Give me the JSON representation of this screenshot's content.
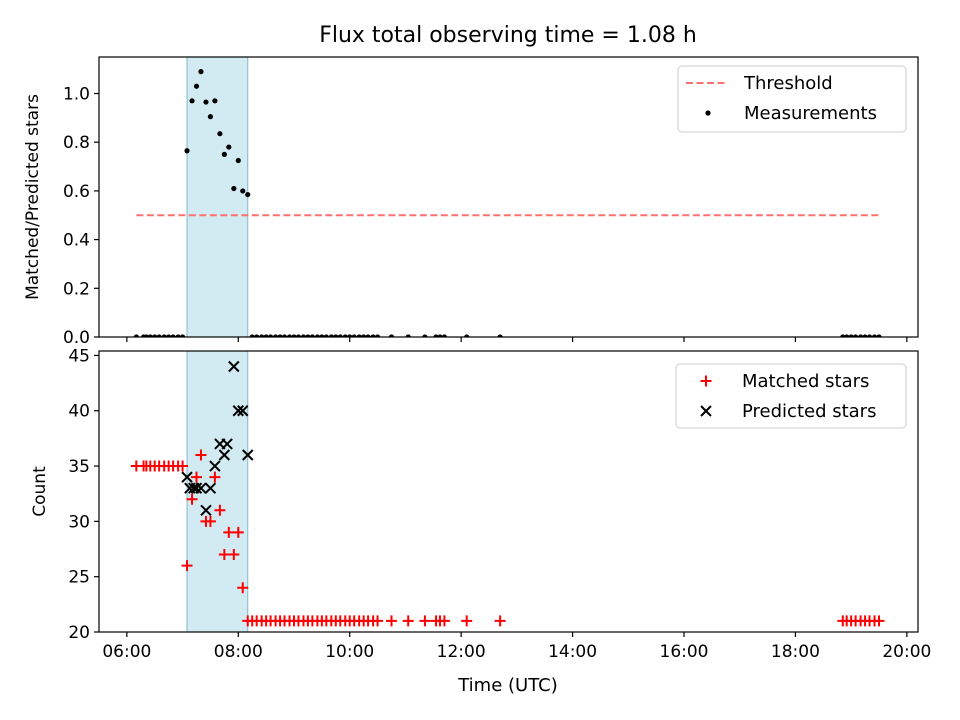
{
  "chart_data": {
    "title": "Flux total observing time = 1.08 h",
    "xlabel": "Time (UTC)",
    "x_unit": "hours UTC",
    "x_ticks": [
      {
        "value": 6,
        "label": "06:00"
      },
      {
        "value": 8,
        "label": "08:00"
      },
      {
        "value": 10,
        "label": "10:00"
      },
      {
        "value": 12,
        "label": "12:00"
      },
      {
        "value": 14,
        "label": "14:00"
      },
      {
        "value": 16,
        "label": "16:00"
      },
      {
        "value": 18,
        "label": "18:00"
      },
      {
        "value": 20,
        "label": "20:00"
      }
    ],
    "xlim": [
      5.5,
      20.2
    ],
    "shaded_interval": [
      7.08,
      8.17
    ],
    "shade_color": "#add8e6",
    "panels": [
      {
        "type": "scatter",
        "ylabel": "Matched/Predicted stars",
        "ylim": [
          0,
          1.15
        ],
        "yticks": [
          0.0,
          0.2,
          0.4,
          0.6,
          0.8,
          1.0
        ],
        "ytick_labels": [
          "0.0",
          "0.2",
          "0.4",
          "0.6",
          "0.8",
          "1.0"
        ],
        "legend_position": "top-right",
        "threshold": {
          "name": "Threshold",
          "value": 0.5,
          "x_range": [
            6.17,
            19.5
          ],
          "color": "#ff7070"
        },
        "series": [
          {
            "name": "Measurements",
            "marker": "dot",
            "color": "#000000",
            "x": [
              6.17,
              6.3,
              6.35,
              6.42,
              6.5,
              6.58,
              6.67,
              6.75,
              6.83,
              6.92,
              7.0,
              7.08,
              7.17,
              7.25,
              7.33,
              7.42,
              7.5,
              7.58,
              7.67,
              7.75,
              7.83,
              7.92,
              8.0,
              8.08,
              8.17,
              8.25,
              8.33,
              8.42,
              8.5,
              8.58,
              8.67,
              8.75,
              8.83,
              8.92,
              9.0,
              9.08,
              9.17,
              9.25,
              9.33,
              9.42,
              9.5,
              9.58,
              9.67,
              9.75,
              9.83,
              9.92,
              10.0,
              10.08,
              10.17,
              10.25,
              10.33,
              10.42,
              10.5,
              10.75,
              11.05,
              11.35,
              11.55,
              11.62,
              11.7,
              12.1,
              12.7,
              18.85,
              18.92,
              19.0,
              19.08,
              19.17,
              19.25,
              19.33,
              19.42,
              19.5
            ],
            "y": [
              0,
              0,
              0,
              0,
              0,
              0,
              0,
              0,
              0,
              0,
              0,
              0.765,
              0.97,
              1.03,
              1.09,
              0.965,
              0.905,
              0.97,
              0.835,
              0.75,
              0.78,
              0.61,
              0.725,
              0.6,
              0.585,
              0,
              0,
              0,
              0,
              0,
              0,
              0,
              0,
              0,
              0,
              0,
              0,
              0,
              0,
              0,
              0,
              0,
              0,
              0,
              0,
              0,
              0,
              0,
              0,
              0,
              0,
              0,
              0,
              0,
              0,
              0,
              0,
              0,
              0,
              0,
              0,
              0,
              0,
              0,
              0,
              0,
              0,
              0,
              0,
              0
            ]
          }
        ]
      },
      {
        "type": "scatter",
        "ylabel": "Count",
        "ylim": [
          20,
          45.4
        ],
        "yticks": [
          20,
          25,
          30,
          35,
          40,
          45
        ],
        "ytick_labels": [
          "20",
          "25",
          "30",
          "35",
          "40",
          "45"
        ],
        "legend_position": "top-right",
        "series": [
          {
            "name": "Matched stars",
            "marker": "plus",
            "color": "#ff0000",
            "x": [
              6.17,
              6.3,
              6.35,
              6.42,
              6.5,
              6.58,
              6.67,
              6.75,
              6.83,
              6.92,
              7.0,
              7.08,
              7.17,
              7.25,
              7.33,
              7.42,
              7.5,
              7.58,
              7.67,
              7.75,
              7.83,
              7.92,
              8.0,
              8.08,
              8.17,
              8.25,
              8.33,
              8.42,
              8.5,
              8.58,
              8.67,
              8.75,
              8.83,
              8.92,
              9.0,
              9.08,
              9.17,
              9.25,
              9.33,
              9.42,
              9.5,
              9.58,
              9.67,
              9.75,
              9.83,
              9.92,
              10.0,
              10.08,
              10.17,
              10.25,
              10.33,
              10.42,
              10.5,
              10.75,
              11.05,
              11.35,
              11.55,
              11.62,
              11.7,
              12.1,
              12.7,
              18.85,
              18.92,
              19.0,
              19.08,
              19.17,
              19.25,
              19.33,
              19.42,
              19.5
            ],
            "y": [
              35,
              35,
              35,
              35,
              35,
              35,
              35,
              35,
              35,
              35,
              35,
              26,
              32,
              34,
              36,
              30,
              30,
              34,
              31,
              27,
              29,
              27,
              29,
              24,
              21,
              21,
              21,
              21,
              21,
              21,
              21,
              21,
              21,
              21,
              21,
              21,
              21,
              21,
              21,
              21,
              21,
              21,
              21,
              21,
              21,
              21,
              21,
              21,
              21,
              21,
              21,
              21,
              21,
              21,
              21,
              21,
              21,
              21,
              21,
              21,
              21,
              21,
              21,
              21,
              21,
              21,
              21,
              21,
              21,
              21
            ]
          },
          {
            "name": "Predicted stars",
            "marker": "x",
            "color": "#000000",
            "x": [
              7.08,
              7.13,
              7.2,
              7.25,
              7.33,
              7.42,
              7.5,
              7.58,
              7.67,
              7.75,
              7.8,
              7.92,
              8.0,
              8.08,
              8.17
            ],
            "y": [
              34,
              33,
              33,
              33,
              33,
              31,
              33,
              35,
              37,
              36,
              37,
              44,
              40,
              40,
              36
            ]
          }
        ]
      }
    ]
  }
}
